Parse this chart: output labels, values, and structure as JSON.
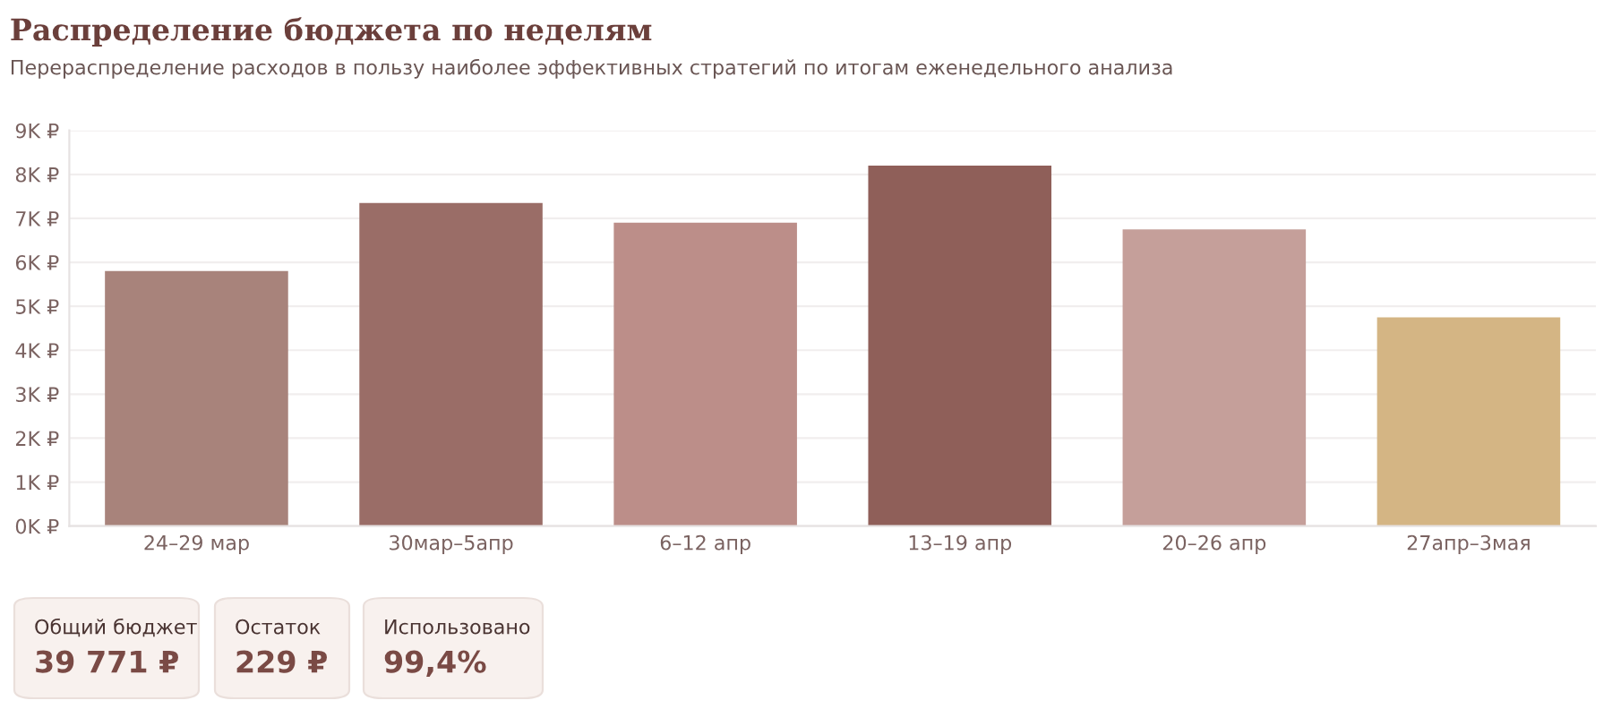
{
  "chart_data": {
    "type": "bar",
    "title": "Распределение бюджета по неделям",
    "subtitle": "Перераспределение расходов в пользу наиболее эффективных стратегий по итогам еженедельного анализа",
    "categories": [
      "24–29 мар",
      "30мар–5апр",
      "6–12 апр",
      "13–19 апр",
      "20–26 апр",
      "27апр–3мая"
    ],
    "values": [
      5800,
      7350,
      6900,
      8200,
      6750,
      4750
    ],
    "colors": [
      "#a8837b",
      "#9a6d67",
      "#bc8e89",
      "#8f5f59",
      "#c59f9a",
      "#d4b584"
    ],
    "ylim": [
      0,
      9000
    ],
    "yticks": [
      {
        "value": 0,
        "label": "0K ₽"
      },
      {
        "value": 1000,
        "label": "1K ₽"
      },
      {
        "value": 2000,
        "label": "2K ₽"
      },
      {
        "value": 3000,
        "label": "3K ₽"
      },
      {
        "value": 4000,
        "label": "4K ₽"
      },
      {
        "value": 5000,
        "label": "5K ₽"
      },
      {
        "value": 6000,
        "label": "6K ₽"
      },
      {
        "value": 7000,
        "label": "7K ₽"
      },
      {
        "value": 8000,
        "label": "8K ₽"
      },
      {
        "value": 9000,
        "label": "9K ₽"
      }
    ],
    "grid": "y",
    "annotations": [
      "Общий бюджет",
      "39 771 ₽",
      "Остаток",
      "229 ₽",
      "Использовано",
      "99,4%"
    ]
  }
}
